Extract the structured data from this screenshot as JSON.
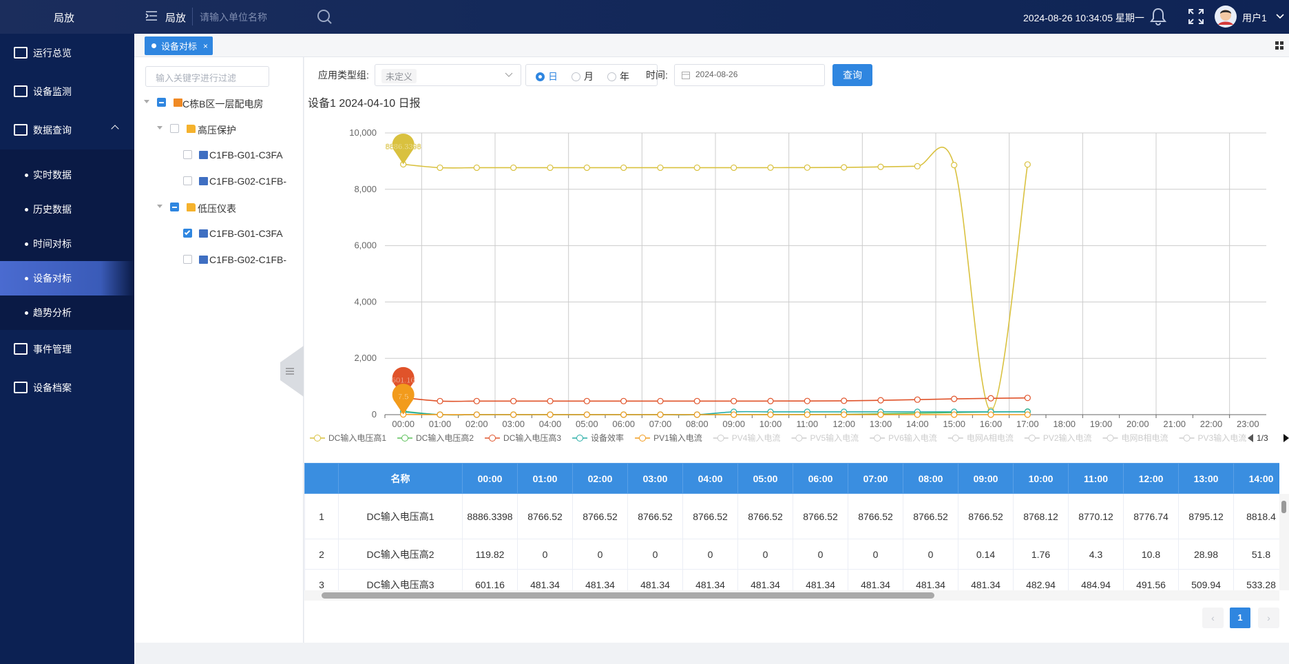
{
  "header": {
    "brand": "局放",
    "section": "局放",
    "search_placeholder": "请输入单位名称",
    "datetime": "2024-08-26 10:34:05 星期一",
    "user": "用户1"
  },
  "sidebar": {
    "menu": [
      {
        "label": "运行总览"
      },
      {
        "label": "设备监测"
      },
      {
        "label": "数据查询",
        "children": [
          {
            "label": "实时数据"
          },
          {
            "label": "历史数据"
          },
          {
            "label": "时间对标"
          },
          {
            "label": "设备对标",
            "active": true
          },
          {
            "label": "趋势分析"
          }
        ]
      },
      {
        "label": "事件管理"
      },
      {
        "label": "设备档案"
      }
    ]
  },
  "tabs": [
    {
      "label": "设备对标"
    }
  ],
  "tree": {
    "filter_placeholder": "输入关键字进行过滤",
    "nodes": [
      {
        "label": "C栋B区一层配电房",
        "level": 0,
        "check": "partial",
        "icon": "building"
      },
      {
        "label": "高压保护",
        "level": 1,
        "check": "none",
        "icon": "folder"
      },
      {
        "label": "C1FB-G01-C3FA",
        "level": 2,
        "check": "none",
        "icon": "device"
      },
      {
        "label": "C1FB-G02-C1FB-",
        "level": 2,
        "check": "none",
        "icon": "device"
      },
      {
        "label": "低压仪表",
        "level": 1,
        "check": "partial",
        "icon": "folder"
      },
      {
        "label": "C1FB-G01-C3FA",
        "level": 2,
        "check": "checked",
        "icon": "device"
      },
      {
        "label": "C1FB-G02-C1FB-",
        "level": 2,
        "check": "none",
        "icon": "device"
      }
    ]
  },
  "filters": {
    "type_label": "应用类型组:",
    "type_value": "未定义",
    "period_options": [
      {
        "label": "日",
        "selected": true
      },
      {
        "label": "月"
      },
      {
        "label": "年"
      }
    ],
    "time_label": "时间:",
    "date": "2024-08-26",
    "button": "查询"
  },
  "chart_data": {
    "type": "line",
    "smooth": true,
    "title": "设备1 2024-04-10 日报",
    "categories": [
      "00:00",
      "01:00",
      "02:00",
      "03:00",
      "04:00",
      "05:00",
      "06:00",
      "07:00",
      "08:00",
      "09:00",
      "10:00",
      "11:00",
      "12:00",
      "13:00",
      "14:00",
      "15:00",
      "16:00",
      "17:00",
      "18:00",
      "19:00",
      "20:00",
      "21:00",
      "22:00",
      "23:00"
    ],
    "ylim": [
      0,
      10000
    ],
    "yticks": [
      0,
      {
        "value": 2000,
        "label": "2,000"
      },
      {
        "value": 4000,
        "label": "4,000"
      },
      {
        "value": 6000,
        "label": "6,000"
      },
      {
        "value": 8000,
        "label": "8,000"
      },
      {
        "value": 10000,
        "label": "10,000"
      }
    ],
    "grid": true,
    "series": [
      {
        "name": "DC输入电压高1",
        "color": "#d9c13f",
        "mark_max": true,
        "values": [
          8886.3398,
          8766.52,
          8766.52,
          8766.52,
          8766.52,
          8766.52,
          8766.52,
          8766.52,
          8766.52,
          8766.52,
          8768.12,
          8770.12,
          8776.74,
          8795.12,
          8818.4,
          8860,
          150,
          8880,
          null,
          null,
          null,
          null,
          null,
          null
        ]
      },
      {
        "name": "DC输入电压高2",
        "color": "#5cc15a",
        "values": [
          119.82,
          0,
          0,
          0,
          0,
          0,
          0,
          0,
          0,
          0.14,
          1.76,
          4.3,
          10.8,
          28.98,
          51.8,
          75,
          95,
          110,
          null,
          null,
          null,
          null,
          null,
          null
        ]
      },
      {
        "name": "DC输入电压高3",
        "color": "#e0532a",
        "mark_max": true,
        "values": [
          601.16,
          481.34,
          481.34,
          481.34,
          481.34,
          481.34,
          481.34,
          481.34,
          481.34,
          481.34,
          482.94,
          484.94,
          491.56,
          509.94,
          533.28,
          560,
          580,
          595,
          null,
          null,
          null,
          null,
          null,
          null
        ]
      },
      {
        "name": "设备效率",
        "color": "#26ada6",
        "values": [
          100,
          0,
          0,
          0,
          0,
          0,
          0,
          0,
          0,
          100,
          100,
          100,
          100,
          100,
          100,
          100,
          100,
          100,
          null,
          null,
          null,
          null,
          null,
          null
        ]
      },
      {
        "name": "PV1输入电流",
        "color": "#f29b1c",
        "mark_max": true,
        "values": [
          7.5,
          0,
          0,
          0,
          0,
          0,
          0,
          0,
          0,
          0,
          0,
          0,
          0,
          0,
          0,
          0,
          0,
          0,
          null,
          null,
          null,
          null,
          null,
          null
        ]
      }
    ],
    "legend_hidden": [
      "PV4输入电流",
      "PV5输入电流",
      "PV6输入电流",
      "电网A相电流",
      "PV2输入电流",
      "电网B相电流",
      "PV3输入电流"
    ],
    "legend_page": "1/3"
  },
  "table": {
    "columns": [
      "名称",
      "00:00",
      "01:00",
      "02:00",
      "03:00",
      "04:00",
      "05:00",
      "06:00",
      "07:00",
      "08:00",
      "09:00",
      "10:00",
      "11:00",
      "12:00",
      "13:00",
      "14:00"
    ],
    "rows": [
      [
        1,
        "DC输入电压高1",
        8886.3398,
        8766.52,
        8766.52,
        8766.52,
        8766.52,
        8766.52,
        8766.52,
        8766.52,
        8766.52,
        8766.52,
        8768.12,
        8770.12,
        8776.74,
        8795.12,
        8818.4
      ],
      [
        2,
        "DC输入电压高2",
        119.82,
        0,
        0,
        0,
        0,
        0,
        0,
        0,
        0,
        0.14,
        1.76,
        4.3,
        10.8,
        28.98,
        51.8
      ],
      [
        3,
        "DC输入电压高3",
        601.16,
        481.34,
        481.34,
        481.34,
        481.34,
        481.34,
        481.34,
        481.34,
        481.34,
        481.34,
        482.94,
        484.94,
        491.56,
        509.94,
        533.28
      ]
    ]
  },
  "pagination": {
    "current": 1
  }
}
